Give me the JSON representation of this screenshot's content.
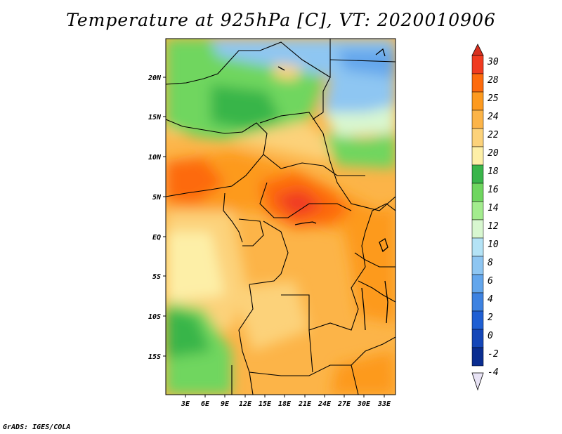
{
  "title": "Temperature at 925hPa [C], VT: 2020010906",
  "credit": "GrADS: IGES/COLA",
  "lat_ticks": [
    "20N",
    "15N",
    "10N",
    "5N",
    "EQ",
    "5S",
    "10S",
    "15S"
  ],
  "lon_ticks": [
    "3E",
    "6E",
    "9E",
    "12E",
    "15E",
    "18E",
    "21E",
    "24E",
    "27E",
    "30E",
    "33E"
  ],
  "colorbar": {
    "labels": [
      "30",
      "28",
      "25",
      "24",
      "22",
      "20",
      "18",
      "16",
      "14",
      "12",
      "10",
      "8",
      "6",
      "4",
      "2",
      "0",
      "-2",
      "-4"
    ],
    "colors": {
      "over": "#d7301f",
      "c28_30": "#f03b20",
      "c25_28": "#fd6b0d",
      "c24_25": "#fd9a1f",
      "c22_24": "#fcb448",
      "c20_22": "#fcd27a",
      "c18_20": "#fdefa7",
      "c16_18": "#39b54a",
      "c14_16": "#6fd65f",
      "c12_14": "#a3ec8e",
      "c10_12": "#d8f7d0",
      "c8_10": "#b4e3f6",
      "c6_8": "#8ec6f2",
      "c4_6": "#63a6ec",
      "c2_4": "#3d82e1",
      "c0_2": "#1f5fd3",
      "cm2_0": "#1446b8",
      "cm4_m2": "#0a2d90",
      "under": "#e8e3f5"
    }
  }
}
